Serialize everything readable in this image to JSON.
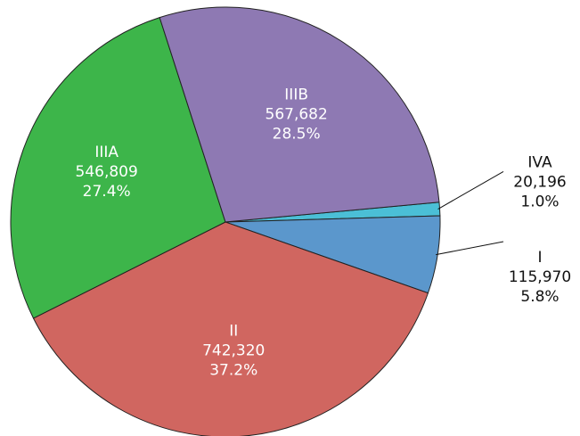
{
  "chart_data": {
    "type": "pie",
    "categories": [
      "IVA",
      "I",
      "II",
      "IIIA",
      "IIIB"
    ],
    "values": [
      20196,
      115970,
      742320,
      546809,
      567682
    ],
    "value_labels": [
      "20,196",
      "115,970",
      "742,320",
      "546,809",
      "567,682"
    ],
    "percent_labels": [
      "1.0%",
      "5.8%",
      "37.2%",
      "27.4%",
      "28.5%"
    ],
    "colors": [
      "#4bbfd6",
      "#5b97cc",
      "#d06660",
      "#3db54a",
      "#8e79b3"
    ]
  }
}
